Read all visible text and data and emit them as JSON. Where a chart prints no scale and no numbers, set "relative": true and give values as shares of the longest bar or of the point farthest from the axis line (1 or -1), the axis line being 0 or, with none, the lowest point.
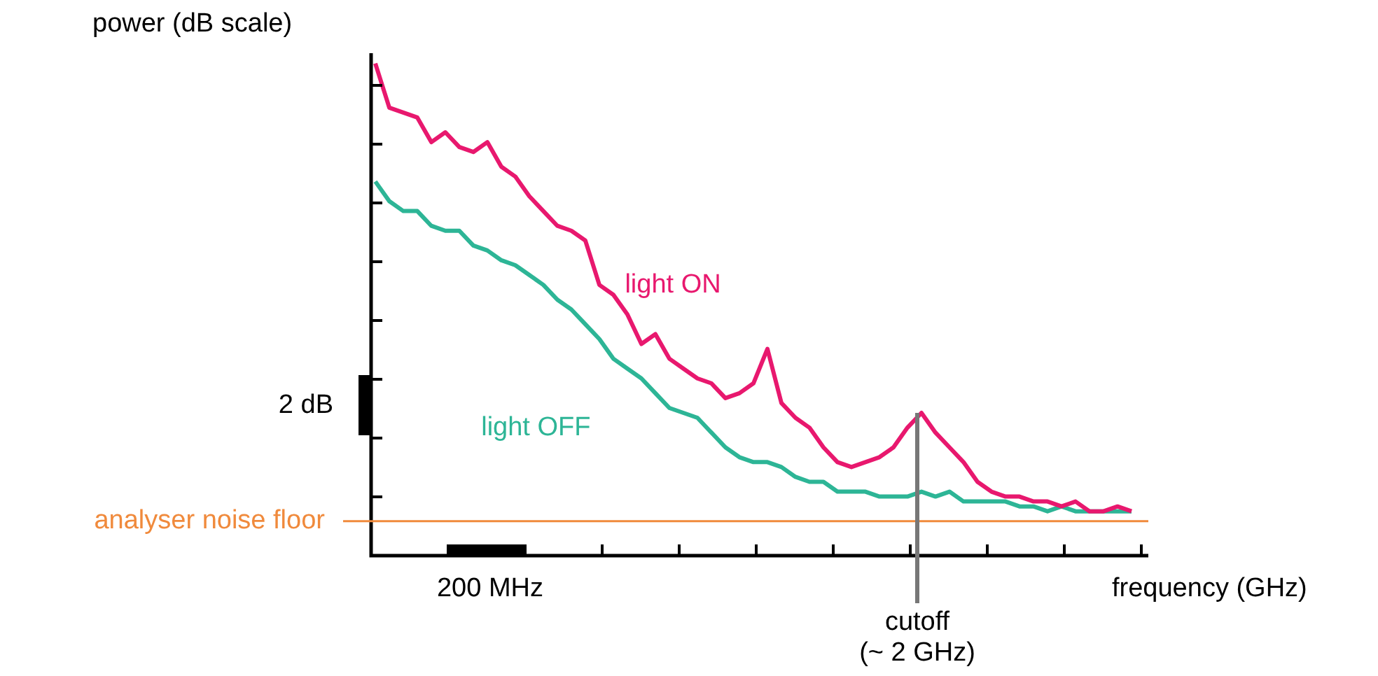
{
  "chart_data": {
    "type": "line",
    "relative": true,
    "ylabel": "power (dB scale)",
    "xlabel": "frequency (GHz)",
    "categories": [
      null,
      null,
      null,
      null,
      null,
      null,
      null,
      null,
      null,
      null,
      null,
      null,
      null,
      null,
      null,
      null,
      null,
      null,
      null,
      null,
      null,
      null,
      null,
      null,
      null,
      null,
      null,
      null,
      null,
      null,
      null,
      null,
      null,
      null,
      null,
      null,
      null,
      null,
      null,
      null,
      null,
      null,
      null,
      null,
      null,
      null,
      null,
      null,
      null,
      null,
      null,
      null,
      null,
      null,
      null
    ],
    "series": [
      {
        "name": "light ON",
        "color": "#e8186e",
        "values": [
          1.0,
          0.91,
          0.9,
          0.89,
          0.84,
          0.86,
          0.83,
          0.82,
          0.84,
          0.79,
          0.77,
          0.73,
          0.7,
          0.67,
          0.66,
          0.64,
          0.55,
          0.53,
          0.49,
          0.43,
          0.45,
          0.4,
          0.38,
          0.36,
          0.35,
          0.32,
          0.33,
          0.35,
          0.42,
          0.31,
          0.28,
          0.26,
          0.22,
          0.19,
          0.18,
          0.19,
          0.2,
          0.22,
          0.26,
          0.29,
          0.25,
          0.22,
          0.19,
          0.15,
          0.13,
          0.12,
          0.12,
          0.11,
          0.11,
          0.1,
          0.11,
          0.09,
          0.09,
          0.1,
          0.09
        ]
      },
      {
        "name": "light OFF",
        "color": "#2db596",
        "values": [
          0.76,
          0.72,
          0.7,
          0.7,
          0.67,
          0.66,
          0.66,
          0.63,
          0.62,
          0.6,
          0.59,
          0.57,
          0.55,
          0.52,
          0.5,
          0.47,
          0.44,
          0.4,
          0.38,
          0.36,
          0.33,
          0.3,
          0.29,
          0.28,
          0.25,
          0.22,
          0.2,
          0.19,
          0.19,
          0.18,
          0.16,
          0.15,
          0.15,
          0.13,
          0.13,
          0.13,
          0.12,
          0.12,
          0.12,
          0.13,
          0.12,
          0.13,
          0.11,
          0.11,
          0.11,
          0.11,
          0.1,
          0.1,
          0.09,
          0.1,
          0.09,
          0.09,
          0.09,
          0.09,
          0.09
        ]
      }
    ],
    "ref_lines": [
      {
        "axis": "y",
        "value": 0.07,
        "label": "analyser noise floor",
        "color": "#f08a3c"
      }
    ],
    "annotations": [
      "2 dB",
      "200 MHz",
      {
        "text": "cutoff\n(~ 2 GHz)",
        "y": 0.29
      }
    ],
    "legend": false,
    "marker": "none",
    "line_style": "solid"
  }
}
